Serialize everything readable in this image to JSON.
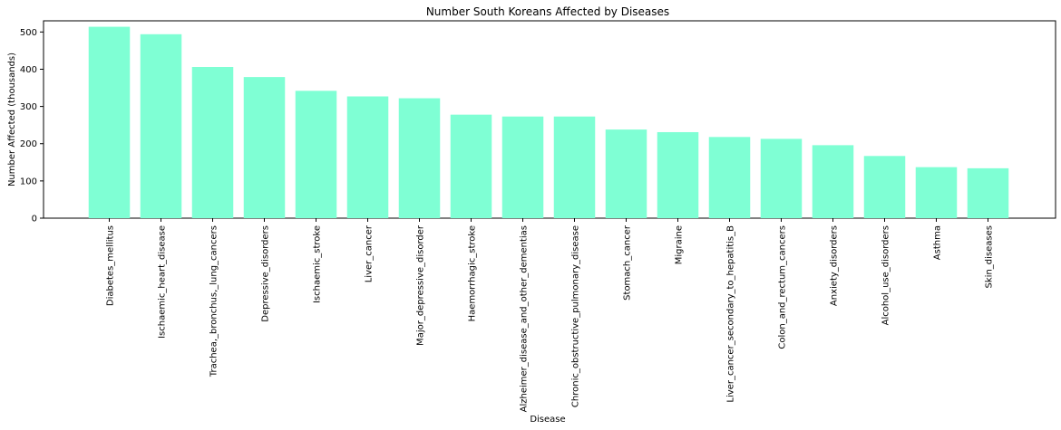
{
  "chart_data": {
    "type": "bar",
    "title": "Number South Koreans Affected by Diseases",
    "xlabel": "Disease",
    "ylabel": "Number Affected (thousands)",
    "categories": [
      "Diabetes_mellitus",
      "Ischaemic_heart_disease",
      "Trachea,_bronchus,_lung_cancers",
      "Depressive_disorders",
      "Ischaemic_stroke",
      "Liver_cancer",
      "Major_depressive_disorder",
      "Haemorrhagic_stroke",
      "Alzheimer_disease_and_other_dementias",
      "Chronic_obstructive_pulmonary_disease",
      "Stomach_cancer",
      "Migraine",
      "Liver_cancer_secondary_to_hepatitis_B",
      "Colon_and_rectum_cancers",
      "Anxiety_disorders",
      "Alcohol_use_disorders",
      "Asthma",
      "Skin_diseases"
    ],
    "values": [
      514,
      494,
      406,
      379,
      342,
      327,
      322,
      278,
      273,
      273,
      238,
      231,
      218,
      213,
      196,
      167,
      137,
      134
    ],
    "ylim": [
      0,
      530
    ],
    "yticks": [
      0,
      100,
      200,
      300,
      400,
      500
    ],
    "grid": false,
    "bar_color": "#7fffd4"
  }
}
